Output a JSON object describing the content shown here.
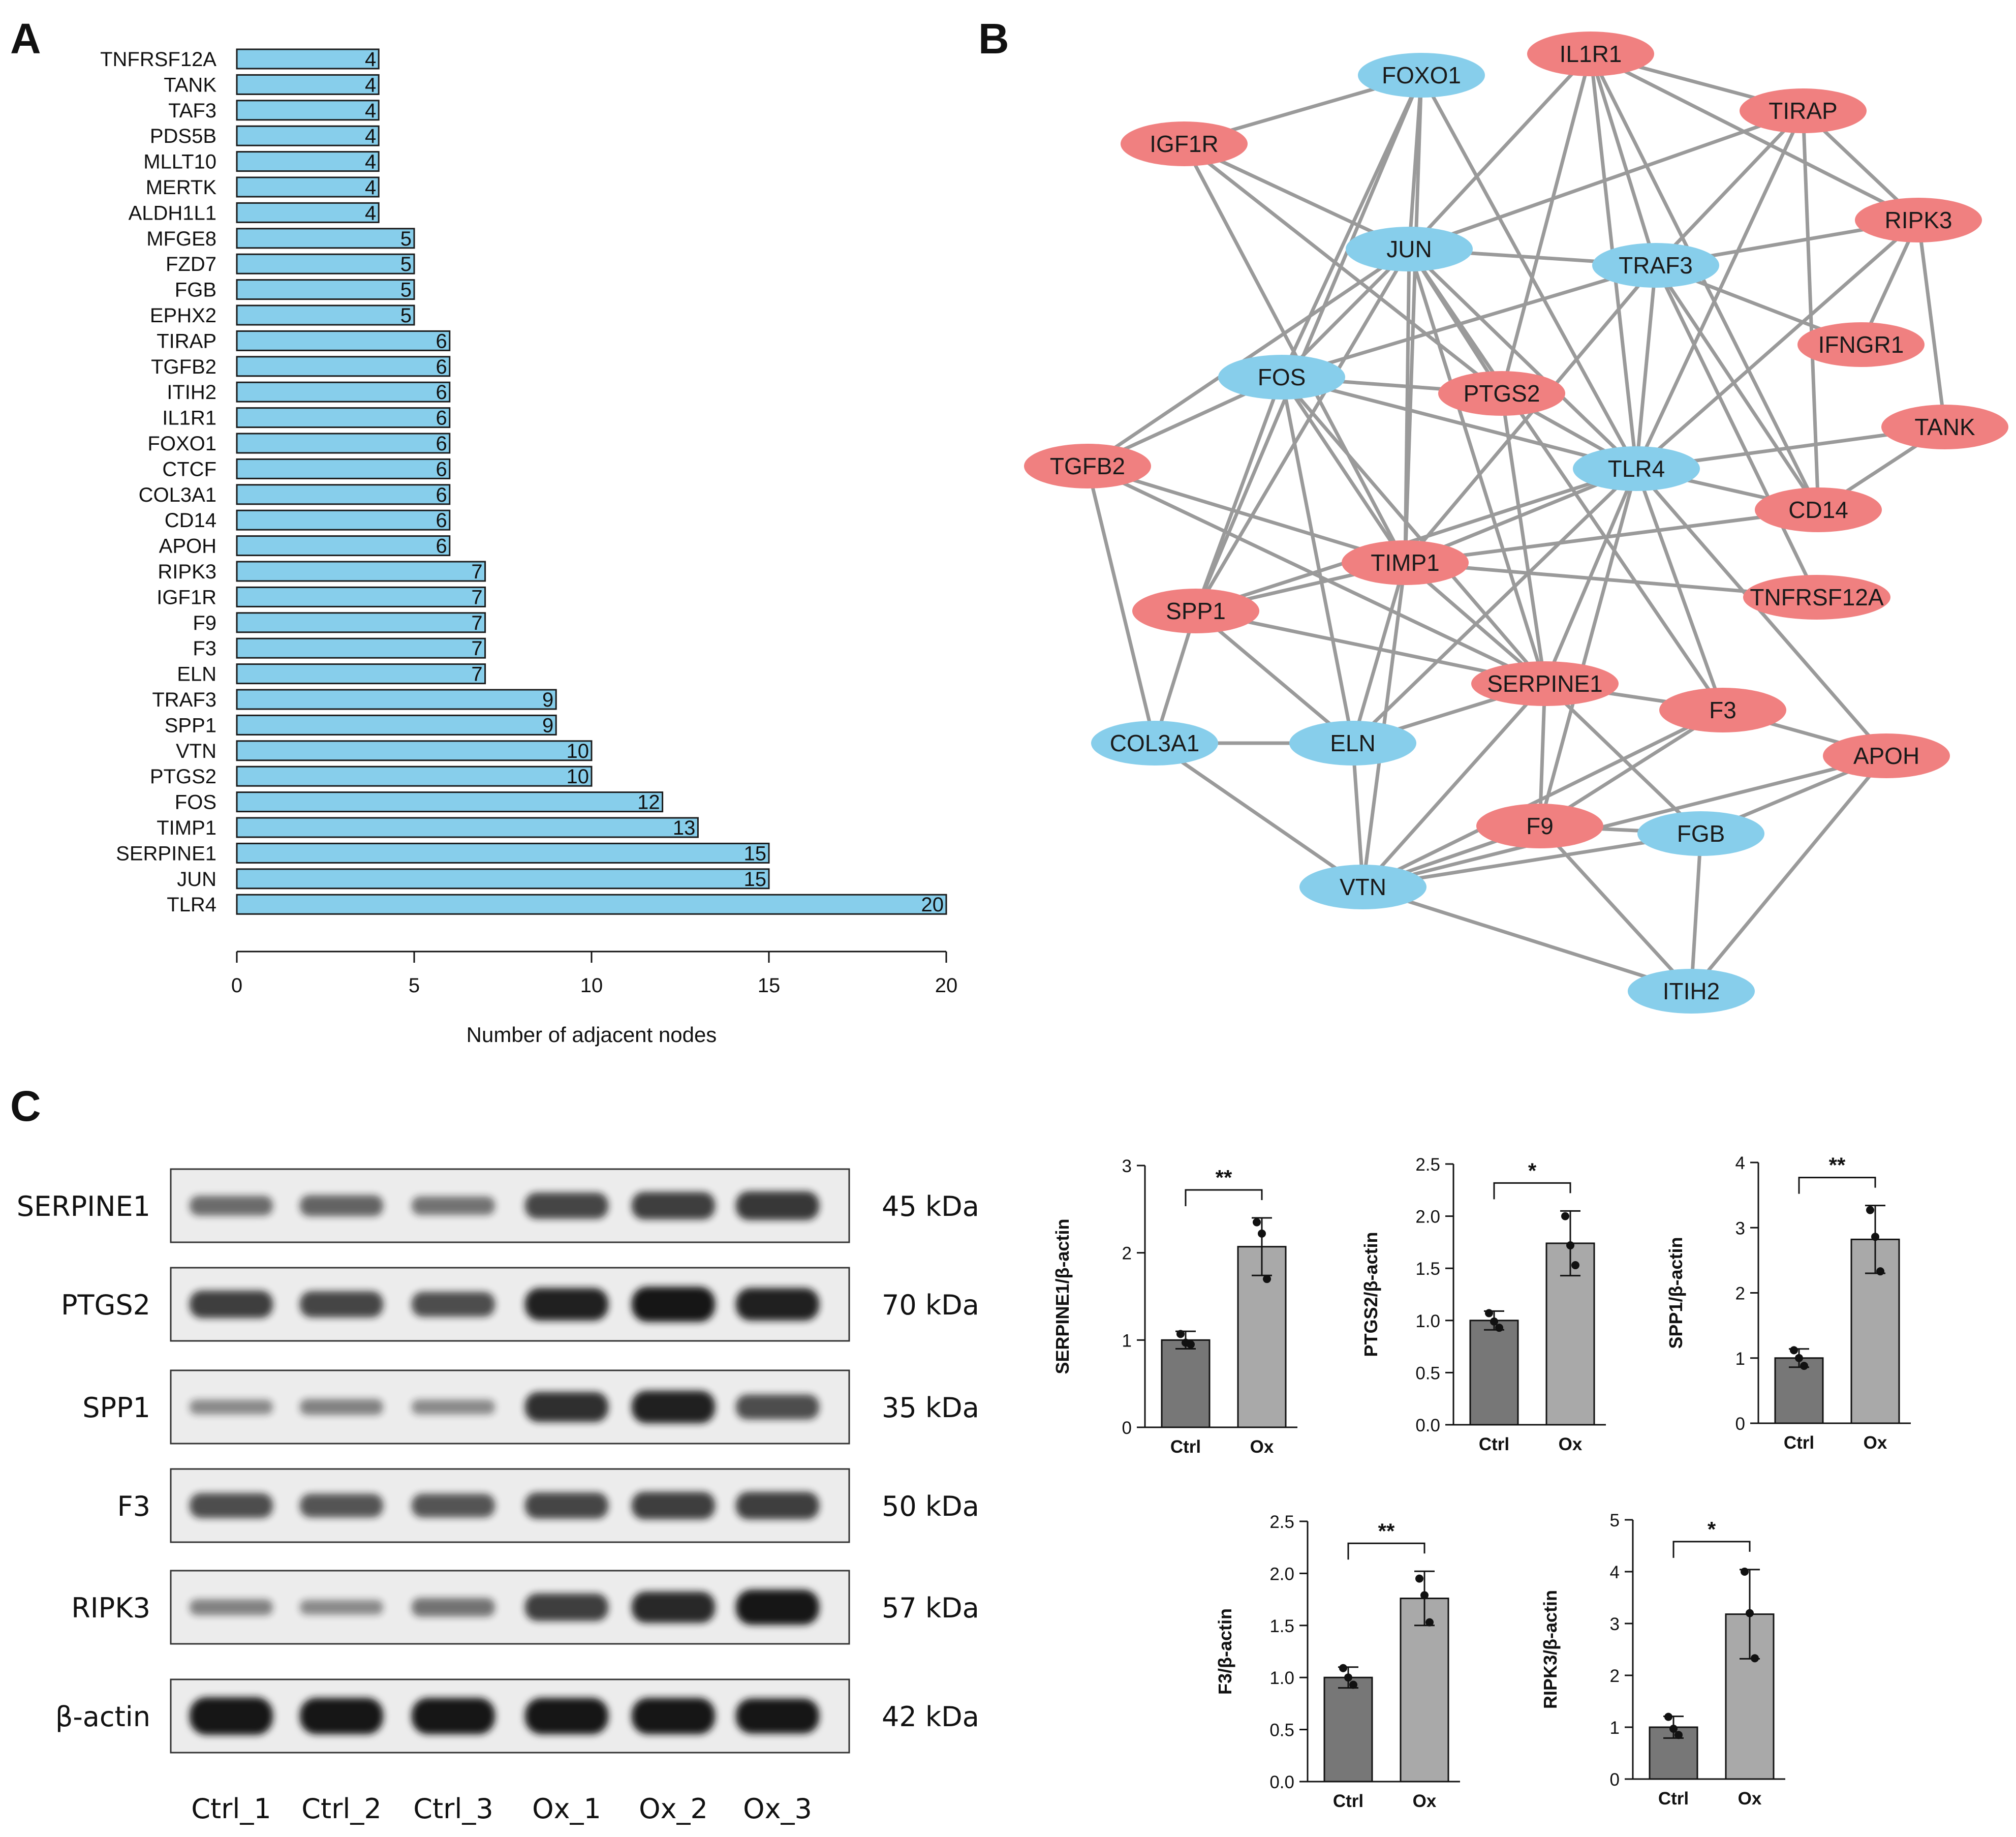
{
  "colors": {
    "bar": "#87ceeb",
    "bar_edge": "#1a1a1a",
    "node_red": "#f08080",
    "node_blue": "#87ceeb",
    "edge": "#9a9a9a",
    "bar_ctrl": "#777777",
    "bar_ox": "#a9a9a9",
    "blot_bg": "#ececec",
    "band": "#141414"
  },
  "panels": {
    "a": "A",
    "b": "B",
    "c": "C"
  },
  "chart_data": [
    {
      "id": "A",
      "type": "bar",
      "orientation": "horizontal",
      "categories": [
        "TNFRSF12A",
        "TANK",
        "TAF3",
        "PDS5B",
        "MLLT10",
        "MERTK",
        "ALDH1L1",
        "MFGE8",
        "FZD7",
        "FGB",
        "EPHX2",
        "TIRAP",
        "TGFB2",
        "ITIH2",
        "IL1R1",
        "FOXO1",
        "CTCF",
        "COL3A1",
        "CD14",
        "APOH",
        "RIPK3",
        "IGF1R",
        "F9",
        "F3",
        "ELN",
        "TRAF3",
        "SPP1",
        "VTN",
        "PTGS2",
        "FOS",
        "TIMP1",
        "SERPINE1",
        "JUN",
        "TLR4"
      ],
      "values": [
        4,
        4,
        4,
        4,
        4,
        4,
        4,
        5,
        5,
        5,
        5,
        6,
        6,
        6,
        6,
        6,
        6,
        6,
        6,
        6,
        7,
        7,
        7,
        7,
        7,
        9,
        9,
        10,
        10,
        12,
        13,
        15,
        15,
        20
      ],
      "xlabel": "Number of adjacent nodes",
      "xlim": [
        0,
        20
      ],
      "xticks": [
        0,
        5,
        10,
        15,
        20
      ]
    },
    {
      "id": "B",
      "type": "network",
      "nodes": [
        {
          "label": "FOXO1",
          "group": "blue"
        },
        {
          "label": "IL1R1",
          "group": "red"
        },
        {
          "label": "TIRAP",
          "group": "red"
        },
        {
          "label": "IGF1R",
          "group": "red"
        },
        {
          "label": "RIPK3",
          "group": "red"
        },
        {
          "label": "JUN",
          "group": "blue"
        },
        {
          "label": "TRAF3",
          "group": "blue"
        },
        {
          "label": "IFNGR1",
          "group": "red"
        },
        {
          "label": "FOS",
          "group": "blue"
        },
        {
          "label": "PTGS2",
          "group": "red"
        },
        {
          "label": "TANK",
          "group": "red"
        },
        {
          "label": "TGFB2",
          "group": "red"
        },
        {
          "label": "TLR4",
          "group": "blue"
        },
        {
          "label": "CD14",
          "group": "red"
        },
        {
          "label": "TIMP1",
          "group": "red"
        },
        {
          "label": "TNFRSF12A",
          "group": "red"
        },
        {
          "label": "SPP1",
          "group": "red"
        },
        {
          "label": "SERPINE1",
          "group": "red"
        },
        {
          "label": "F3",
          "group": "red"
        },
        {
          "label": "COL3A1",
          "group": "blue"
        },
        {
          "label": "ELN",
          "group": "blue"
        },
        {
          "label": "APOH",
          "group": "red"
        },
        {
          "label": "F9",
          "group": "red"
        },
        {
          "label": "FGB",
          "group": "blue"
        },
        {
          "label": "VTN",
          "group": "blue"
        },
        {
          "label": "ITIH2",
          "group": "blue"
        }
      ],
      "edges": [
        [
          "FOXO1",
          "IGF1R"
        ],
        [
          "FOXO1",
          "JUN"
        ],
        [
          "FOXO1",
          "FOS"
        ],
        [
          "FOXO1",
          "TLR4"
        ],
        [
          "FOXO1",
          "TIMP1"
        ],
        [
          "FOXO1",
          "SPP1"
        ],
        [
          "IL1R1",
          "TIRAP"
        ],
        [
          "IL1R1",
          "JUN"
        ],
        [
          "IL1R1",
          "TRAF3"
        ],
        [
          "IL1R1",
          "RIPK3"
        ],
        [
          "IL1R1",
          "TLR4"
        ],
        [
          "IL1R1",
          "PTGS2"
        ],
        [
          "IL1R1",
          "CD14"
        ],
        [
          "TIRAP",
          "JUN"
        ],
        [
          "TIRAP",
          "TRAF3"
        ],
        [
          "TIRAP",
          "TLR4"
        ],
        [
          "TIRAP",
          "CD14"
        ],
        [
          "TIRAP",
          "RIPK3"
        ],
        [
          "IGF1R",
          "JUN"
        ],
        [
          "IGF1R",
          "TIMP1"
        ],
        [
          "IGF1R",
          "PTGS2"
        ],
        [
          "RIPK3",
          "TRAF3"
        ],
        [
          "RIPK3",
          "TLR4"
        ],
        [
          "RIPK3",
          "TANK"
        ],
        [
          "RIPK3",
          "IFNGR1"
        ],
        [
          "JUN",
          "TRAF3"
        ],
        [
          "JUN",
          "FOS"
        ],
        [
          "JUN",
          "TLR4"
        ],
        [
          "JUN",
          "TIMP1"
        ],
        [
          "JUN",
          "SERPINE1"
        ],
        [
          "JUN",
          "PTGS2"
        ],
        [
          "JUN",
          "TGFB2"
        ],
        [
          "JUN",
          "SPP1"
        ],
        [
          "JUN",
          "F3"
        ],
        [
          "TRAF3",
          "IFNGR1"
        ],
        [
          "TRAF3",
          "TLR4"
        ],
        [
          "TRAF3",
          "CD14"
        ],
        [
          "TRAF3",
          "FOS"
        ],
        [
          "TRAF3",
          "TNFRSF12A"
        ],
        [
          "TRAF3",
          "TIMP1"
        ],
        [
          "FOS",
          "PTGS2"
        ],
        [
          "FOS",
          "TLR4"
        ],
        [
          "FOS",
          "TGFB2"
        ],
        [
          "FOS",
          "SERPINE1"
        ],
        [
          "FOS",
          "SPP1"
        ],
        [
          "FOS",
          "ELN"
        ],
        [
          "FOS",
          "TIMP1"
        ],
        [
          "PTGS2",
          "TLR4"
        ],
        [
          "PTGS2",
          "SERPINE1"
        ],
        [
          "TANK",
          "TLR4"
        ],
        [
          "TANK",
          "CD14"
        ],
        [
          "TGFB2",
          "TIMP1"
        ],
        [
          "TGFB2",
          "COL3A1"
        ],
        [
          "TGFB2",
          "SERPINE1"
        ],
        [
          "TLR4",
          "TIMP1"
        ],
        [
          "TLR4",
          "SERPINE1"
        ],
        [
          "TLR4",
          "SPP1"
        ],
        [
          "TLR4",
          "ELN"
        ],
        [
          "TLR4",
          "F3"
        ],
        [
          "TLR4",
          "APOH"
        ],
        [
          "TLR4",
          "CD14"
        ],
        [
          "TLR4",
          "F9"
        ],
        [
          "CD14",
          "TIMP1"
        ],
        [
          "TIMP1",
          "SPP1"
        ],
        [
          "TIMP1",
          "SERPINE1"
        ],
        [
          "TIMP1",
          "TNFRSF12A"
        ],
        [
          "TIMP1",
          "ELN"
        ],
        [
          "TIMP1",
          "VTN"
        ],
        [
          "SPP1",
          "SERPINE1"
        ],
        [
          "SPP1",
          "COL3A1"
        ],
        [
          "SPP1",
          "ELN"
        ],
        [
          "SERPINE1",
          "F3"
        ],
        [
          "SERPINE1",
          "ELN"
        ],
        [
          "SERPINE1",
          "F9"
        ],
        [
          "SERPINE1",
          "FGB"
        ],
        [
          "SERPINE1",
          "VTN"
        ],
        [
          "F3",
          "APOH"
        ],
        [
          "F3",
          "F9"
        ],
        [
          "F3",
          "VTN"
        ],
        [
          "COL3A1",
          "ELN"
        ],
        [
          "COL3A1",
          "VTN"
        ],
        [
          "APOH",
          "FGB"
        ],
        [
          "APOH",
          "ITIH2"
        ],
        [
          "APOH",
          "VTN"
        ],
        [
          "F9",
          "FGB"
        ],
        [
          "F9",
          "VTN"
        ],
        [
          "F9",
          "ITIH2"
        ],
        [
          "FGB",
          "VTN"
        ],
        [
          "FGB",
          "ITIH2"
        ],
        [
          "VTN",
          "ITIH2"
        ],
        [
          "VTN",
          "ELN"
        ]
      ]
    },
    {
      "id": "C-SERPINE1",
      "type": "bar",
      "categories": [
        "Ctrl",
        "Ox"
      ],
      "values": [
        1.0,
        2.07
      ],
      "errors": [
        0.1,
        0.33
      ],
      "points": [
        [
          1.07,
          0.97,
          0.95
        ],
        [
          2.35,
          2.22,
          1.7
        ]
      ],
      "ylabel": "SERPINE1/β-actin",
      "ylim": [
        0,
        3
      ],
      "yticks": [
        0,
        1,
        2,
        3
      ],
      "ytick_labels": [
        "0",
        "1",
        "2",
        "3"
      ],
      "significance": "**"
    },
    {
      "id": "C-PTGS2",
      "type": "bar",
      "categories": [
        "Ctrl",
        "Ox"
      ],
      "values": [
        1.0,
        1.74
      ],
      "errors": [
        0.09,
        0.31
      ],
      "points": [
        [
          1.07,
          0.99,
          0.93
        ],
        [
          2.0,
          1.72,
          1.53
        ]
      ],
      "ylabel": "PTGS2/β-actin",
      "ylim": [
        0,
        2.5
      ],
      "yticks": [
        0,
        0.5,
        1,
        1.5,
        2,
        2.5
      ],
      "ytick_labels": [
        "0.0",
        "0.5",
        "1.0",
        "1.5",
        "2.0",
        "2.5"
      ],
      "significance": "*"
    },
    {
      "id": "C-SPP1",
      "type": "bar",
      "categories": [
        "Ctrl",
        "Ox"
      ],
      "values": [
        1.0,
        2.82
      ],
      "errors": [
        0.14,
        0.52
      ],
      "points": [
        [
          1.12,
          1.0,
          0.88
        ],
        [
          3.27,
          2.86,
          2.33
        ]
      ],
      "ylabel": "SPP1/β-actin",
      "ylim": [
        0,
        4
      ],
      "yticks": [
        0,
        1,
        2,
        3,
        4
      ],
      "ytick_labels": [
        "0",
        "1",
        "2",
        "3",
        "4"
      ],
      "significance": "**"
    },
    {
      "id": "C-F3",
      "type": "bar",
      "categories": [
        "Ctrl",
        "Ox"
      ],
      "values": [
        1.0,
        1.76
      ],
      "errors": [
        0.1,
        0.26
      ],
      "points": [
        [
          1.09,
          1.0,
          0.93
        ],
        [
          1.95,
          1.79,
          1.53
        ]
      ],
      "ylabel": "F3/β-actin",
      "ylim": [
        0,
        2.5
      ],
      "yticks": [
        0,
        0.5,
        1,
        1.5,
        2,
        2.5
      ],
      "ytick_labels": [
        "0.0",
        "0.5",
        "1.0",
        "1.5",
        "2.0",
        "2.5"
      ],
      "significance": "**"
    },
    {
      "id": "C-RIPK3",
      "type": "bar",
      "categories": [
        "Ctrl",
        "Ox"
      ],
      "values": [
        1.0,
        3.18
      ],
      "errors": [
        0.21,
        0.86
      ],
      "points": [
        [
          1.2,
          0.97,
          0.85
        ],
        [
          4.0,
          3.2,
          2.33
        ]
      ],
      "ylabel": "RIPK3/β-actin",
      "ylim": [
        0,
        5
      ],
      "yticks": [
        0,
        1,
        2,
        3,
        4,
        5
      ],
      "ytick_labels": [
        "0",
        "1",
        "2",
        "3",
        "4",
        "5"
      ],
      "significance": "*"
    }
  ],
  "blot": {
    "rows": [
      {
        "protein": "SERPINE1",
        "size": "45 kDa",
        "intensity": [
          0.5,
          0.55,
          0.45,
          0.75,
          0.8,
          0.85
        ]
      },
      {
        "protein": "PTGS2",
        "size": "70 kDa",
        "intensity": [
          0.8,
          0.75,
          0.7,
          1.0,
          1.1,
          1.0
        ]
      },
      {
        "protein": "SPP1",
        "size": "35 kDa",
        "intensity": [
          0.3,
          0.35,
          0.3,
          0.9,
          1.0,
          0.7
        ]
      },
      {
        "protein": "F3",
        "size": "50 kDa",
        "intensity": [
          0.7,
          0.65,
          0.65,
          0.75,
          0.8,
          0.8
        ]
      },
      {
        "protein": "RIPK3",
        "size": "57 kDa",
        "intensity": [
          0.35,
          0.3,
          0.45,
          0.8,
          0.95,
          1.1
        ]
      },
      {
        "protein": "β-actin",
        "size": "42 kDa",
        "intensity": [
          1.2,
          1.15,
          1.15,
          1.15,
          1.15,
          1.1
        ]
      }
    ],
    "lanes": [
      "Ctrl_1",
      "Ctrl_2",
      "Ctrl_3",
      "Ox_1",
      "Ox_2",
      "Ox_3"
    ]
  }
}
